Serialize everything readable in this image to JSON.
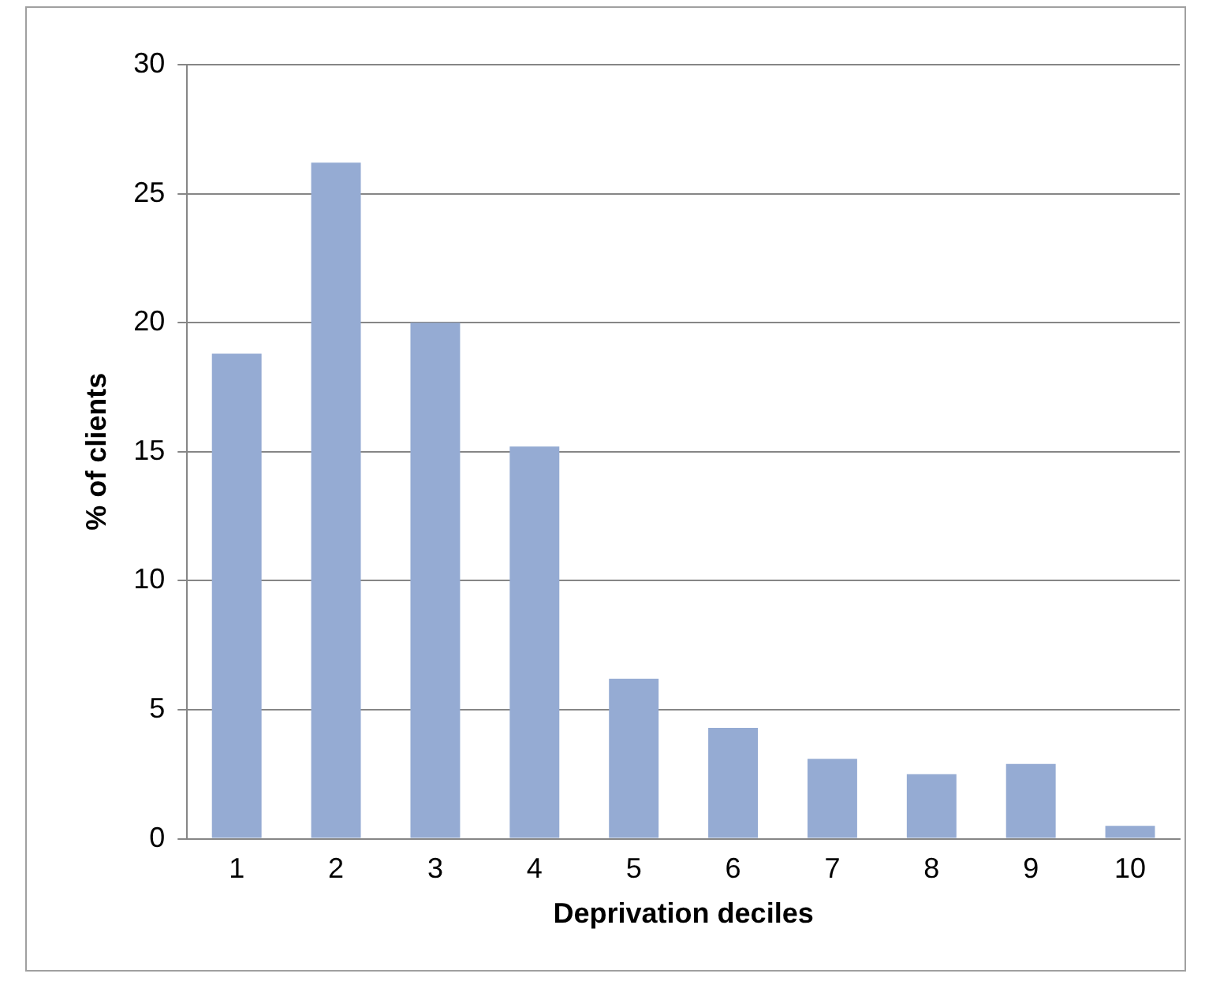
{
  "chart_data": {
    "type": "bar",
    "xlabel": "Deprivation deciles",
    "ylabel": "% of clients",
    "categories": [
      "1",
      "2",
      "3",
      "4",
      "5",
      "6",
      "7",
      "8",
      "9",
      "10"
    ],
    "values": [
      18.8,
      26.2,
      20.0,
      15.2,
      6.2,
      4.3,
      3.1,
      2.5,
      2.9,
      0.5
    ],
    "color": "#95abd3",
    "ylim": [
      0,
      30
    ],
    "yticks": [
      0,
      5,
      10,
      15,
      20,
      25,
      30
    ],
    "grid": "y",
    "legend": false
  }
}
